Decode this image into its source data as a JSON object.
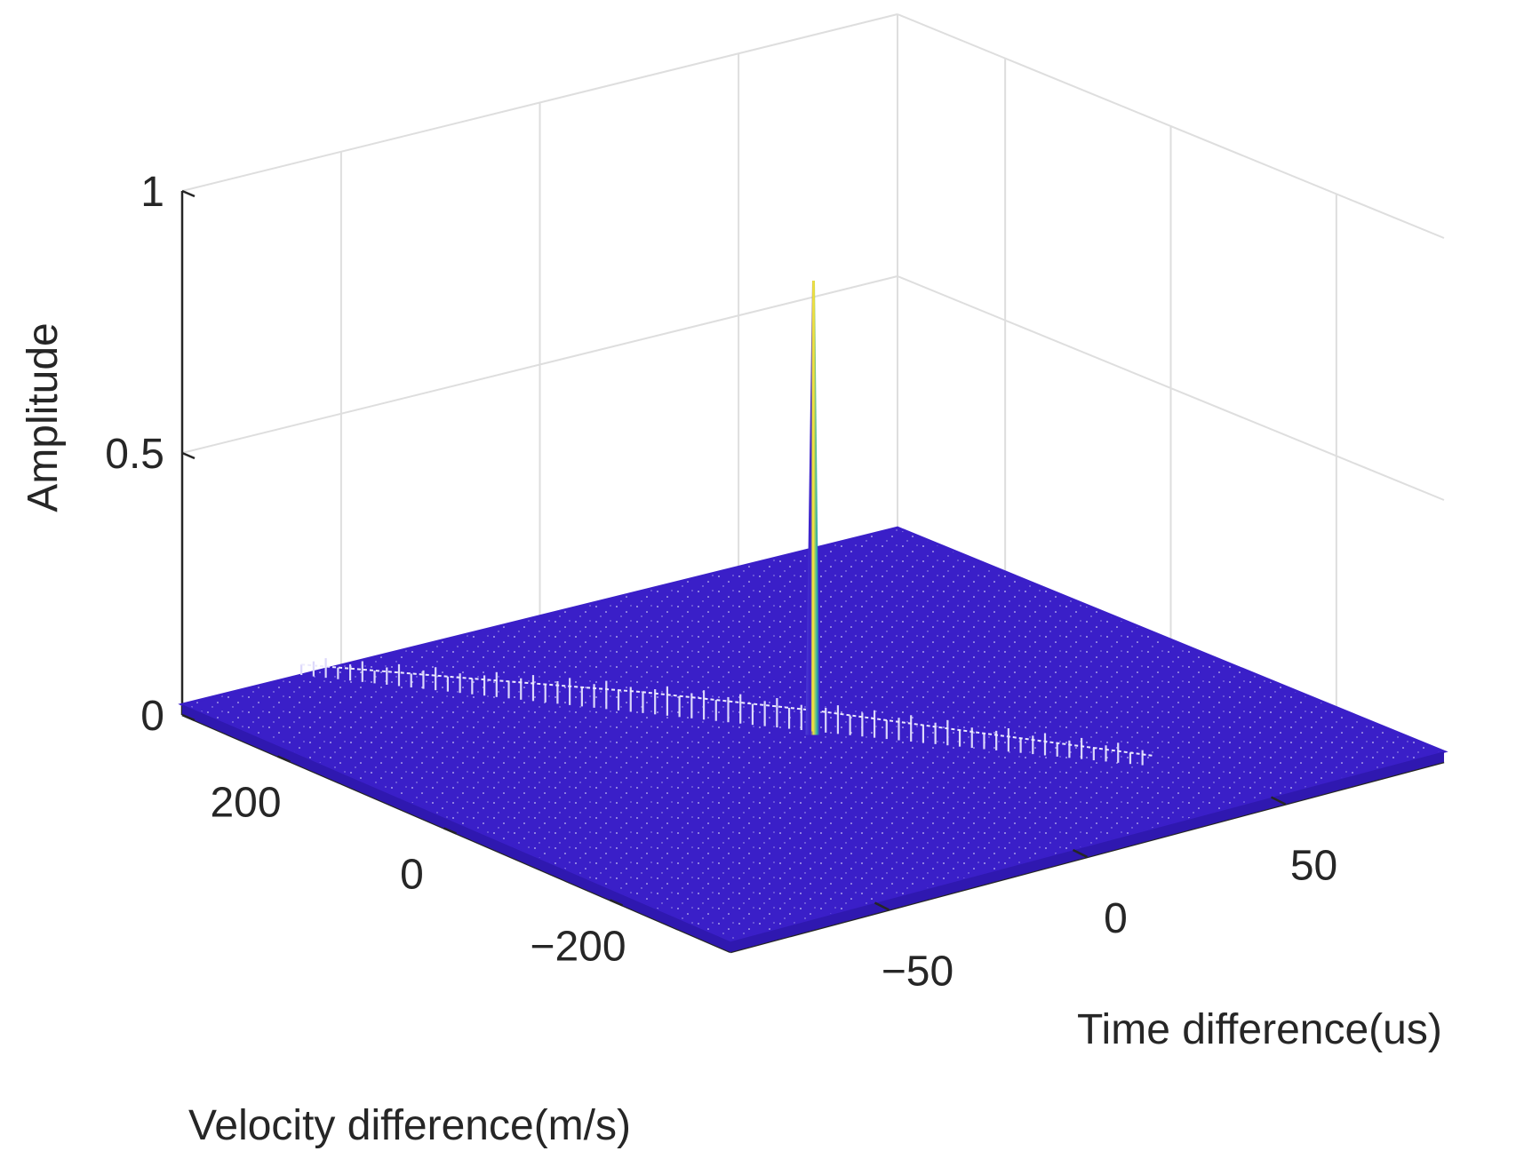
{
  "chart_data": {
    "type": "surface",
    "title": "",
    "xlabel": "Time difference(us)",
    "ylabel": "Velocity difference(m/s)",
    "zlabel": "Amplitude",
    "xlim": [
      -90,
      90
    ],
    "ylim": [
      -330,
      330
    ],
    "zlim": [
      0,
      1
    ],
    "xticks": [
      {
        "value": -50,
        "label": "−50"
      },
      {
        "value": 0,
        "label": "0"
      },
      {
        "value": 50,
        "label": "50"
      }
    ],
    "yticks": [
      {
        "value": -200,
        "label": "−200"
      },
      {
        "value": 0,
        "label": "0"
      },
      {
        "value": 200,
        "label": "200"
      }
    ],
    "zticks": [
      {
        "value": 0,
        "label": "0"
      },
      {
        "value": 0.5,
        "label": "0.5"
      },
      {
        "value": 1,
        "label": "1"
      }
    ],
    "grid": true,
    "colormap": "parula",
    "surface_color": "#3a1fc8",
    "peak_color": "#f0e040",
    "floor_level": 0.02,
    "peak": {
      "x": 0,
      "y": 0,
      "z": 0.88
    },
    "ridge": {
      "description": "sidelobe ridge along zero-Doppler-delay coupling line",
      "points": [
        {
          "x": -60,
          "y": 330,
          "z": 0.04
        },
        {
          "x": -40,
          "y": 220,
          "z": 0.05
        },
        {
          "x": -20,
          "y": 110,
          "z": 0.06
        },
        {
          "x": 0,
          "y": 0,
          "z": 0.06
        },
        {
          "x": 20,
          "y": -110,
          "z": 0.05
        },
        {
          "x": 40,
          "y": -220,
          "z": 0.04
        }
      ]
    }
  }
}
